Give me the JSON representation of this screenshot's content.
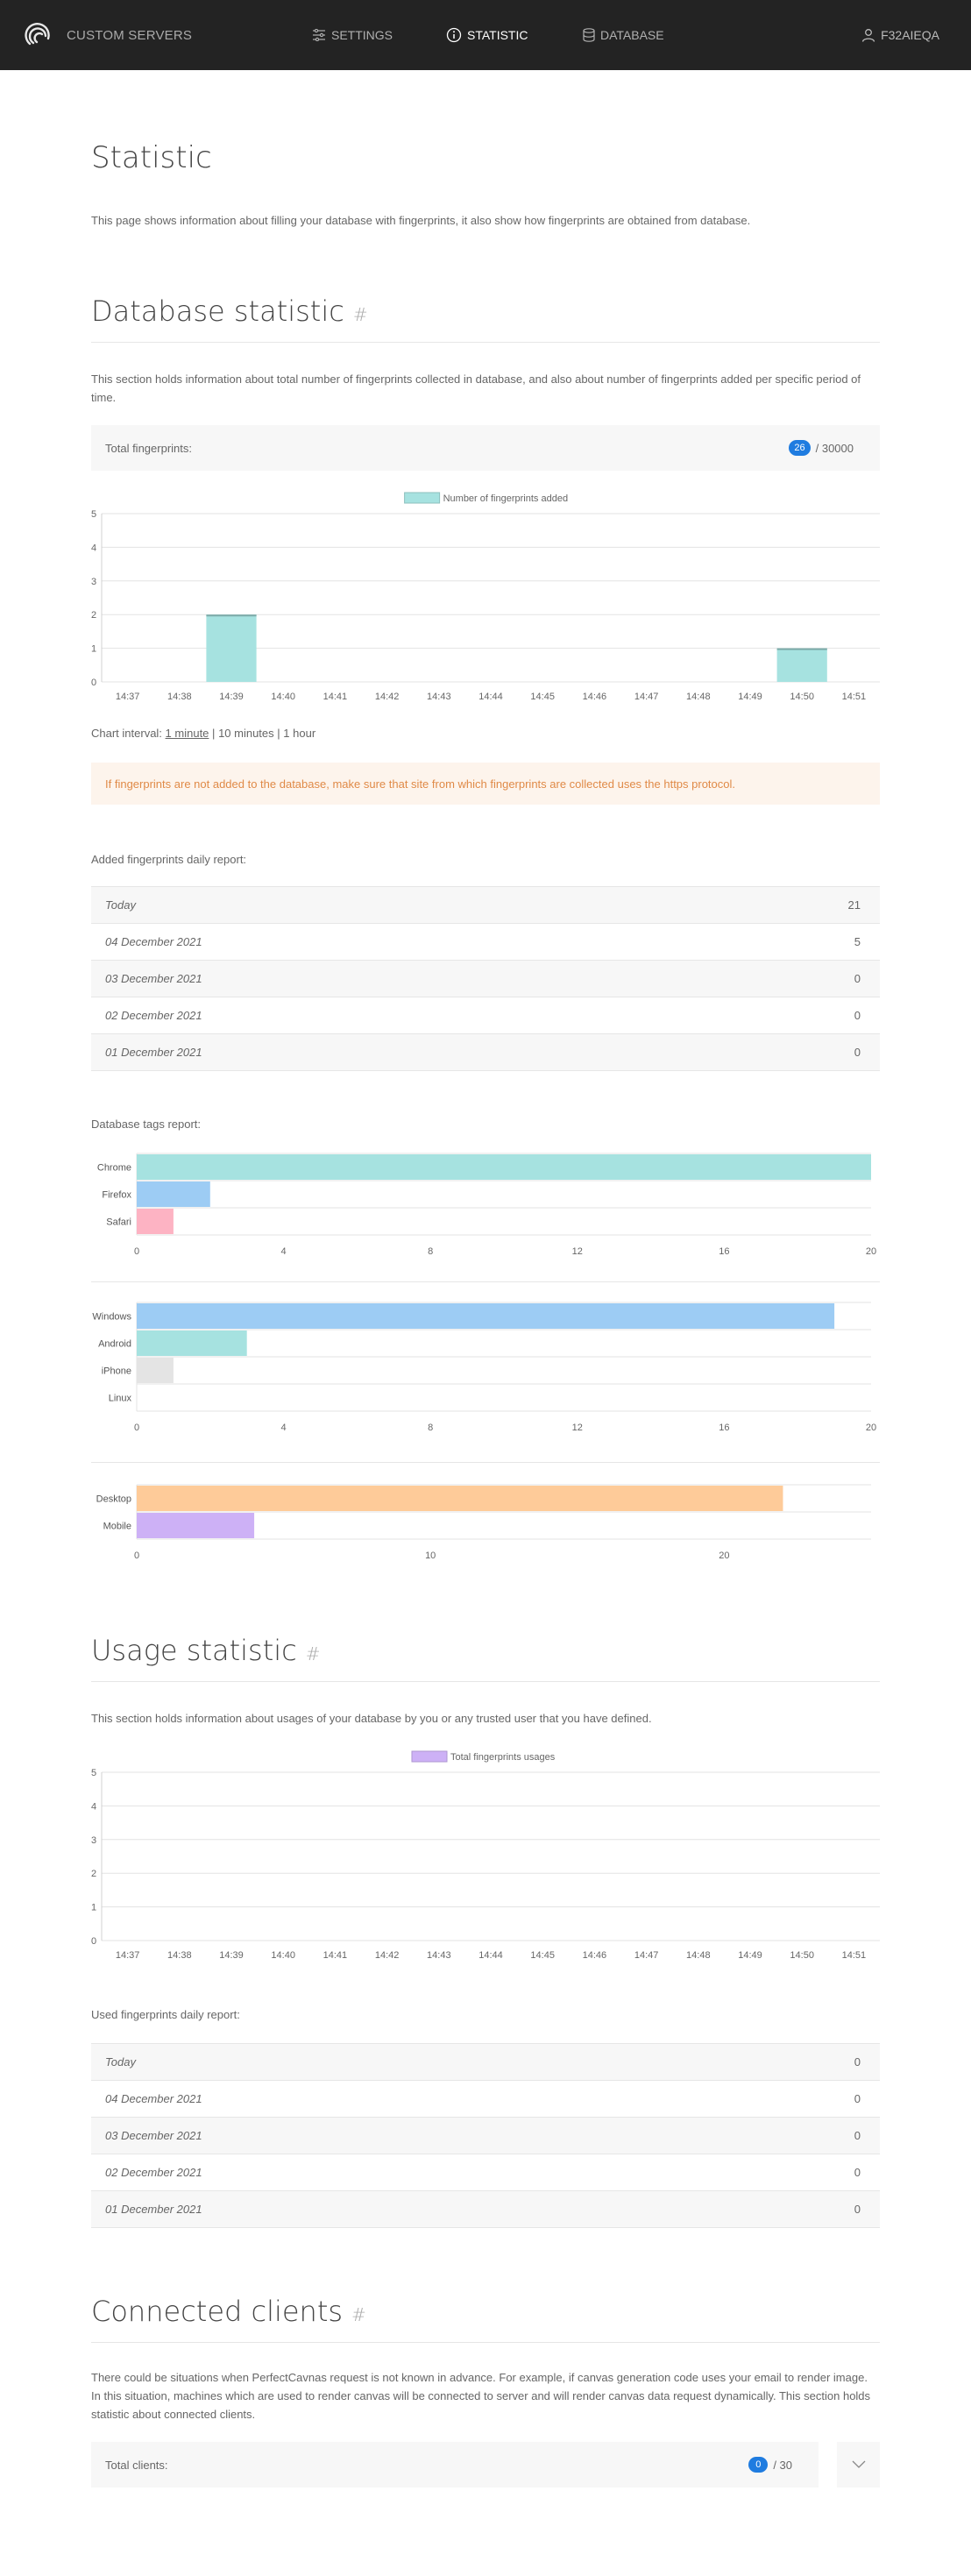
{
  "nav": {
    "brand": "CUSTOM SERVERS",
    "items": [
      {
        "label": "SETTINGS",
        "icon": "sliders-icon"
      },
      {
        "label": "STATISTIC",
        "icon": "info-circle-icon"
      },
      {
        "label": "DATABASE",
        "icon": "database-icon"
      }
    ],
    "user": "F32AIEQA"
  },
  "page": {
    "title": "Statistic",
    "lead": "This page shows information about filling your database with fingerprints, it also show how fingerprints are obtained from database."
  },
  "db": {
    "title": "Database statistic",
    "hash": "#",
    "desc": "This section holds information about total number of fingerprints collected in database, and also about number of fingerprints added per specific period of time.",
    "total_label": "Total fingerprints:",
    "total_count": "26",
    "total_max": "/ 30000",
    "interval_label": "Chart interval:",
    "interval_opts": [
      "1 minute",
      "10 minutes",
      "1 hour"
    ],
    "interval_sep": "|",
    "alert": "If fingerprints are not added to the database, make sure that site from which fingerprints are collected uses the https protocol.",
    "daily_label": "Added fingerprints daily report:",
    "daily": [
      {
        "date": "Today",
        "value": "21"
      },
      {
        "date": "04 December 2021",
        "value": "5"
      },
      {
        "date": "03 December 2021",
        "value": "0"
      },
      {
        "date": "02 December 2021",
        "value": "0"
      },
      {
        "date": "01 December 2021",
        "value": "0"
      }
    ],
    "tags_label": "Database tags report:"
  },
  "usage": {
    "title": "Usage statistic",
    "hash": "#",
    "desc": "This section holds information about usages of your database by you or any trusted user that you have defined.",
    "daily_label": "Used fingerprints daily report:",
    "daily": [
      {
        "date": "Today",
        "value": "0"
      },
      {
        "date": "04 December 2021",
        "value": "0"
      },
      {
        "date": "03 December 2021",
        "value": "0"
      },
      {
        "date": "02 December 2021",
        "value": "0"
      },
      {
        "date": "01 December 2021",
        "value": "0"
      }
    ]
  },
  "clients": {
    "title": "Connected clients",
    "hash": "#",
    "desc": "There could be situations when PerfectCavnas request is not known in advance. For example, if canvas generation code uses your email to render image. In this situation, machines which are used to render canvas will be connected to server and will render canvas data request dynamically. This section holds statistic about connected clients.",
    "total_label": "Total clients:",
    "total_count": "0",
    "total_max": "/ 30"
  },
  "chart_data": [
    {
      "type": "bar",
      "legend": "Number of fingerprints added",
      "categories": [
        "14:37",
        "14:38",
        "14:39",
        "14:40",
        "14:41",
        "14:42",
        "14:43",
        "14:44",
        "14:45",
        "14:46",
        "14:47",
        "14:48",
        "14:49",
        "14:50",
        "14:51"
      ],
      "values": [
        0,
        0,
        2,
        0,
        0,
        0,
        0,
        0,
        0,
        0,
        0,
        0,
        0,
        1,
        0
      ],
      "ylim": [
        0,
        5
      ],
      "yticks": [
        0,
        1,
        2,
        3,
        4,
        5
      ],
      "color": "#a6e2e0",
      "grid": true,
      "legend_position": "top"
    },
    {
      "type": "bar",
      "orientation": "horizontal",
      "categories": [
        "Chrome",
        "Firefox",
        "Safari"
      ],
      "values": [
        20,
        2,
        1
      ],
      "colors": [
        "#a6e2e0",
        "#9dccf4",
        "#fdb3c3"
      ],
      "xlim": [
        0,
        20
      ],
      "xticks": [
        0,
        4,
        8,
        12,
        16,
        20
      ]
    },
    {
      "type": "bar",
      "orientation": "horizontal",
      "categories": [
        "Windows",
        "Android",
        "iPhone",
        "Linux"
      ],
      "values": [
        19,
        3,
        1,
        0
      ],
      "colors": [
        "#9dccf4",
        "#a6e2e0",
        "#e4e4e4",
        "#cccccc"
      ],
      "xlim": [
        0,
        20
      ],
      "xticks": [
        0,
        4,
        8,
        12,
        16,
        20
      ]
    },
    {
      "type": "bar",
      "orientation": "horizontal",
      "categories": [
        "Desktop",
        "Mobile"
      ],
      "values": [
        22,
        4
      ],
      "colors": [
        "#fecb99",
        "#cdb1f6"
      ],
      "xlim": [
        0,
        25
      ],
      "xticks": [
        0,
        10,
        20
      ]
    },
    {
      "type": "bar",
      "legend": "Total fingerprints usages",
      "categories": [
        "14:37",
        "14:38",
        "14:39",
        "14:40",
        "14:41",
        "14:42",
        "14:43",
        "14:44",
        "14:45",
        "14:46",
        "14:47",
        "14:48",
        "14:49",
        "14:50",
        "14:51"
      ],
      "values": [
        0,
        0,
        0,
        0,
        0,
        0,
        0,
        0,
        0,
        0,
        0,
        0,
        0,
        0,
        0
      ],
      "ylim": [
        0,
        5
      ],
      "yticks": [
        0,
        1,
        2,
        3,
        4,
        5
      ],
      "color": "#cdb1f6",
      "grid": true,
      "legend_position": "top"
    }
  ]
}
